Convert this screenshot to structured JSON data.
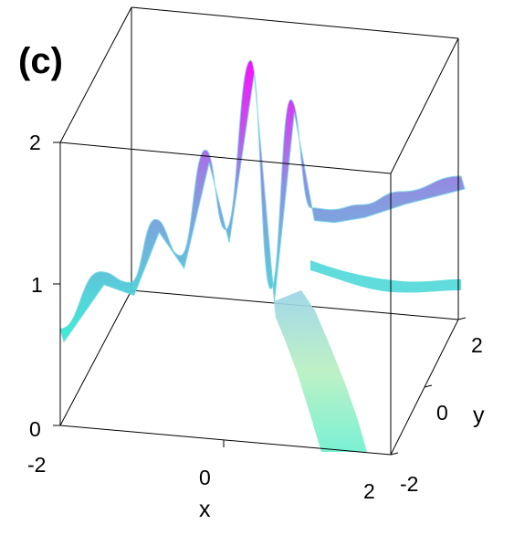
{
  "chart_data": {
    "type": "surface3d",
    "panel_label": "(c)",
    "xlabel": "x",
    "ylabel": "y",
    "zlabel": "",
    "xlim": [
      -2,
      2
    ],
    "ylim": [
      -2,
      2
    ],
    "zlim": [
      0,
      2
    ],
    "x_ticks": [
      "-2",
      "0",
      "2"
    ],
    "y_ticks": [
      "-2",
      "0",
      "2"
    ],
    "z_ticks": [
      "0",
      "1",
      "2"
    ],
    "colormap": [
      "#2ef0d2",
      "#8a8ae0",
      "#ff00ff"
    ],
    "ridge_profile": {
      "description_axis": "x",
      "x": [
        -2.0,
        -1.6,
        -1.3,
        -1.05,
        -0.8,
        -0.55,
        -0.35,
        -0.1,
        0.1,
        0.3,
        0.5,
        0.7,
        1.0,
        1.4,
        2.0
      ],
      "z": [
        0.65,
        0.98,
        0.85,
        1.25,
        0.95,
        1.65,
        1.05,
        2.2,
        0.55,
        1.85,
        1.05,
        1.0,
        0.98,
        1.0,
        1.0
      ]
    }
  }
}
